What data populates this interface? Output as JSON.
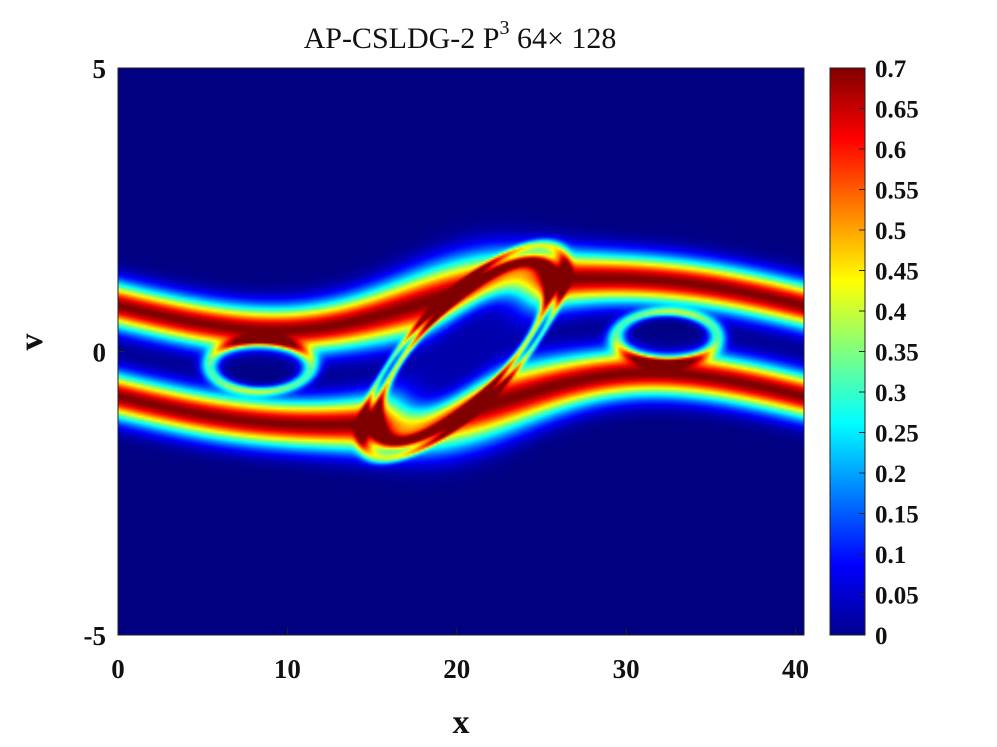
{
  "chart_data": {
    "type": "heatmap",
    "title": "AP-CSLDG-2 P",
    "title_superscript": "3",
    "title_suffix": " 64× 128",
    "xlabel": "x",
    "ylabel": "v",
    "xlim": [
      0,
      40.5
    ],
    "ylim": [
      -5,
      5
    ],
    "x_ticks": [
      0,
      10,
      20,
      30,
      40
    ],
    "x_tick_labels": [
      "0",
      "10",
      "20",
      "30",
      "40"
    ],
    "y_ticks": [
      5,
      0,
      -5
    ],
    "y_tick_labels": [
      "5",
      "0",
      "-5"
    ],
    "colorbar": {
      "range": [
        0,
        0.7
      ],
      "ticks": [
        0.7,
        0.65,
        0.6,
        0.55,
        0.5,
        0.45,
        0.4,
        0.35,
        0.3,
        0.25,
        0.2,
        0.15,
        0.1,
        0.05,
        0
      ],
      "tick_labels": [
        "0.7",
        "0.65",
        "0.6",
        "0.55",
        "0.5",
        "0.45",
        "0.4",
        "0.35",
        "0.3",
        "0.25",
        "0.2",
        "0.15",
        "0.1",
        "0.05",
        "0"
      ],
      "colormap": "jet"
    },
    "grid": false,
    "features": {
      "background_value": 0,
      "upper_band_center_v": 0.8,
      "lower_band_center_v": -0.8,
      "band_peak_value": 0.7,
      "vortex_center": [
        20.4,
        0
      ],
      "vortex_core_value": 0.03
    }
  }
}
